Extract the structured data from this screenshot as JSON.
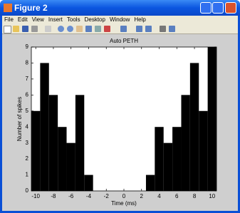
{
  "window": {
    "title": "Figure 2",
    "menu": [
      "File",
      "Edit",
      "View",
      "Insert",
      "Tools",
      "Desktop",
      "Window",
      "Help"
    ]
  },
  "chart_data": {
    "type": "histogram",
    "title": "Auto PETH",
    "x_label": "Time (ms)",
    "y_label": "Number of spikes",
    "bins": [
      -10.5,
      -9.5,
      -8.5,
      -7.5,
      -6.5,
      -5.5,
      -4.5,
      -3.5,
      -2.5,
      -1.5,
      -0.5,
      0.5,
      1.5,
      2.5,
      3.5,
      4.5,
      5.5,
      6.5,
      7.5,
      8.5,
      9.5,
      10.5
    ],
    "values": [
      5,
      8,
      6,
      4,
      3,
      6,
      1,
      0,
      0,
      0,
      0,
      0,
      0,
      1,
      4,
      3,
      4,
      6,
      8,
      5,
      9
    ],
    "color": "#000000",
    "xlim": [
      -10.5,
      10.5
    ],
    "xticks": [
      -10,
      -8,
      -6,
      -4,
      -2,
      0,
      2,
      4,
      6,
      8,
      10
    ],
    "ylim": [
      0,
      9
    ],
    "yticks": [
      0,
      1,
      2,
      3,
      4,
      5,
      6,
      7,
      8,
      9
    ]
  }
}
